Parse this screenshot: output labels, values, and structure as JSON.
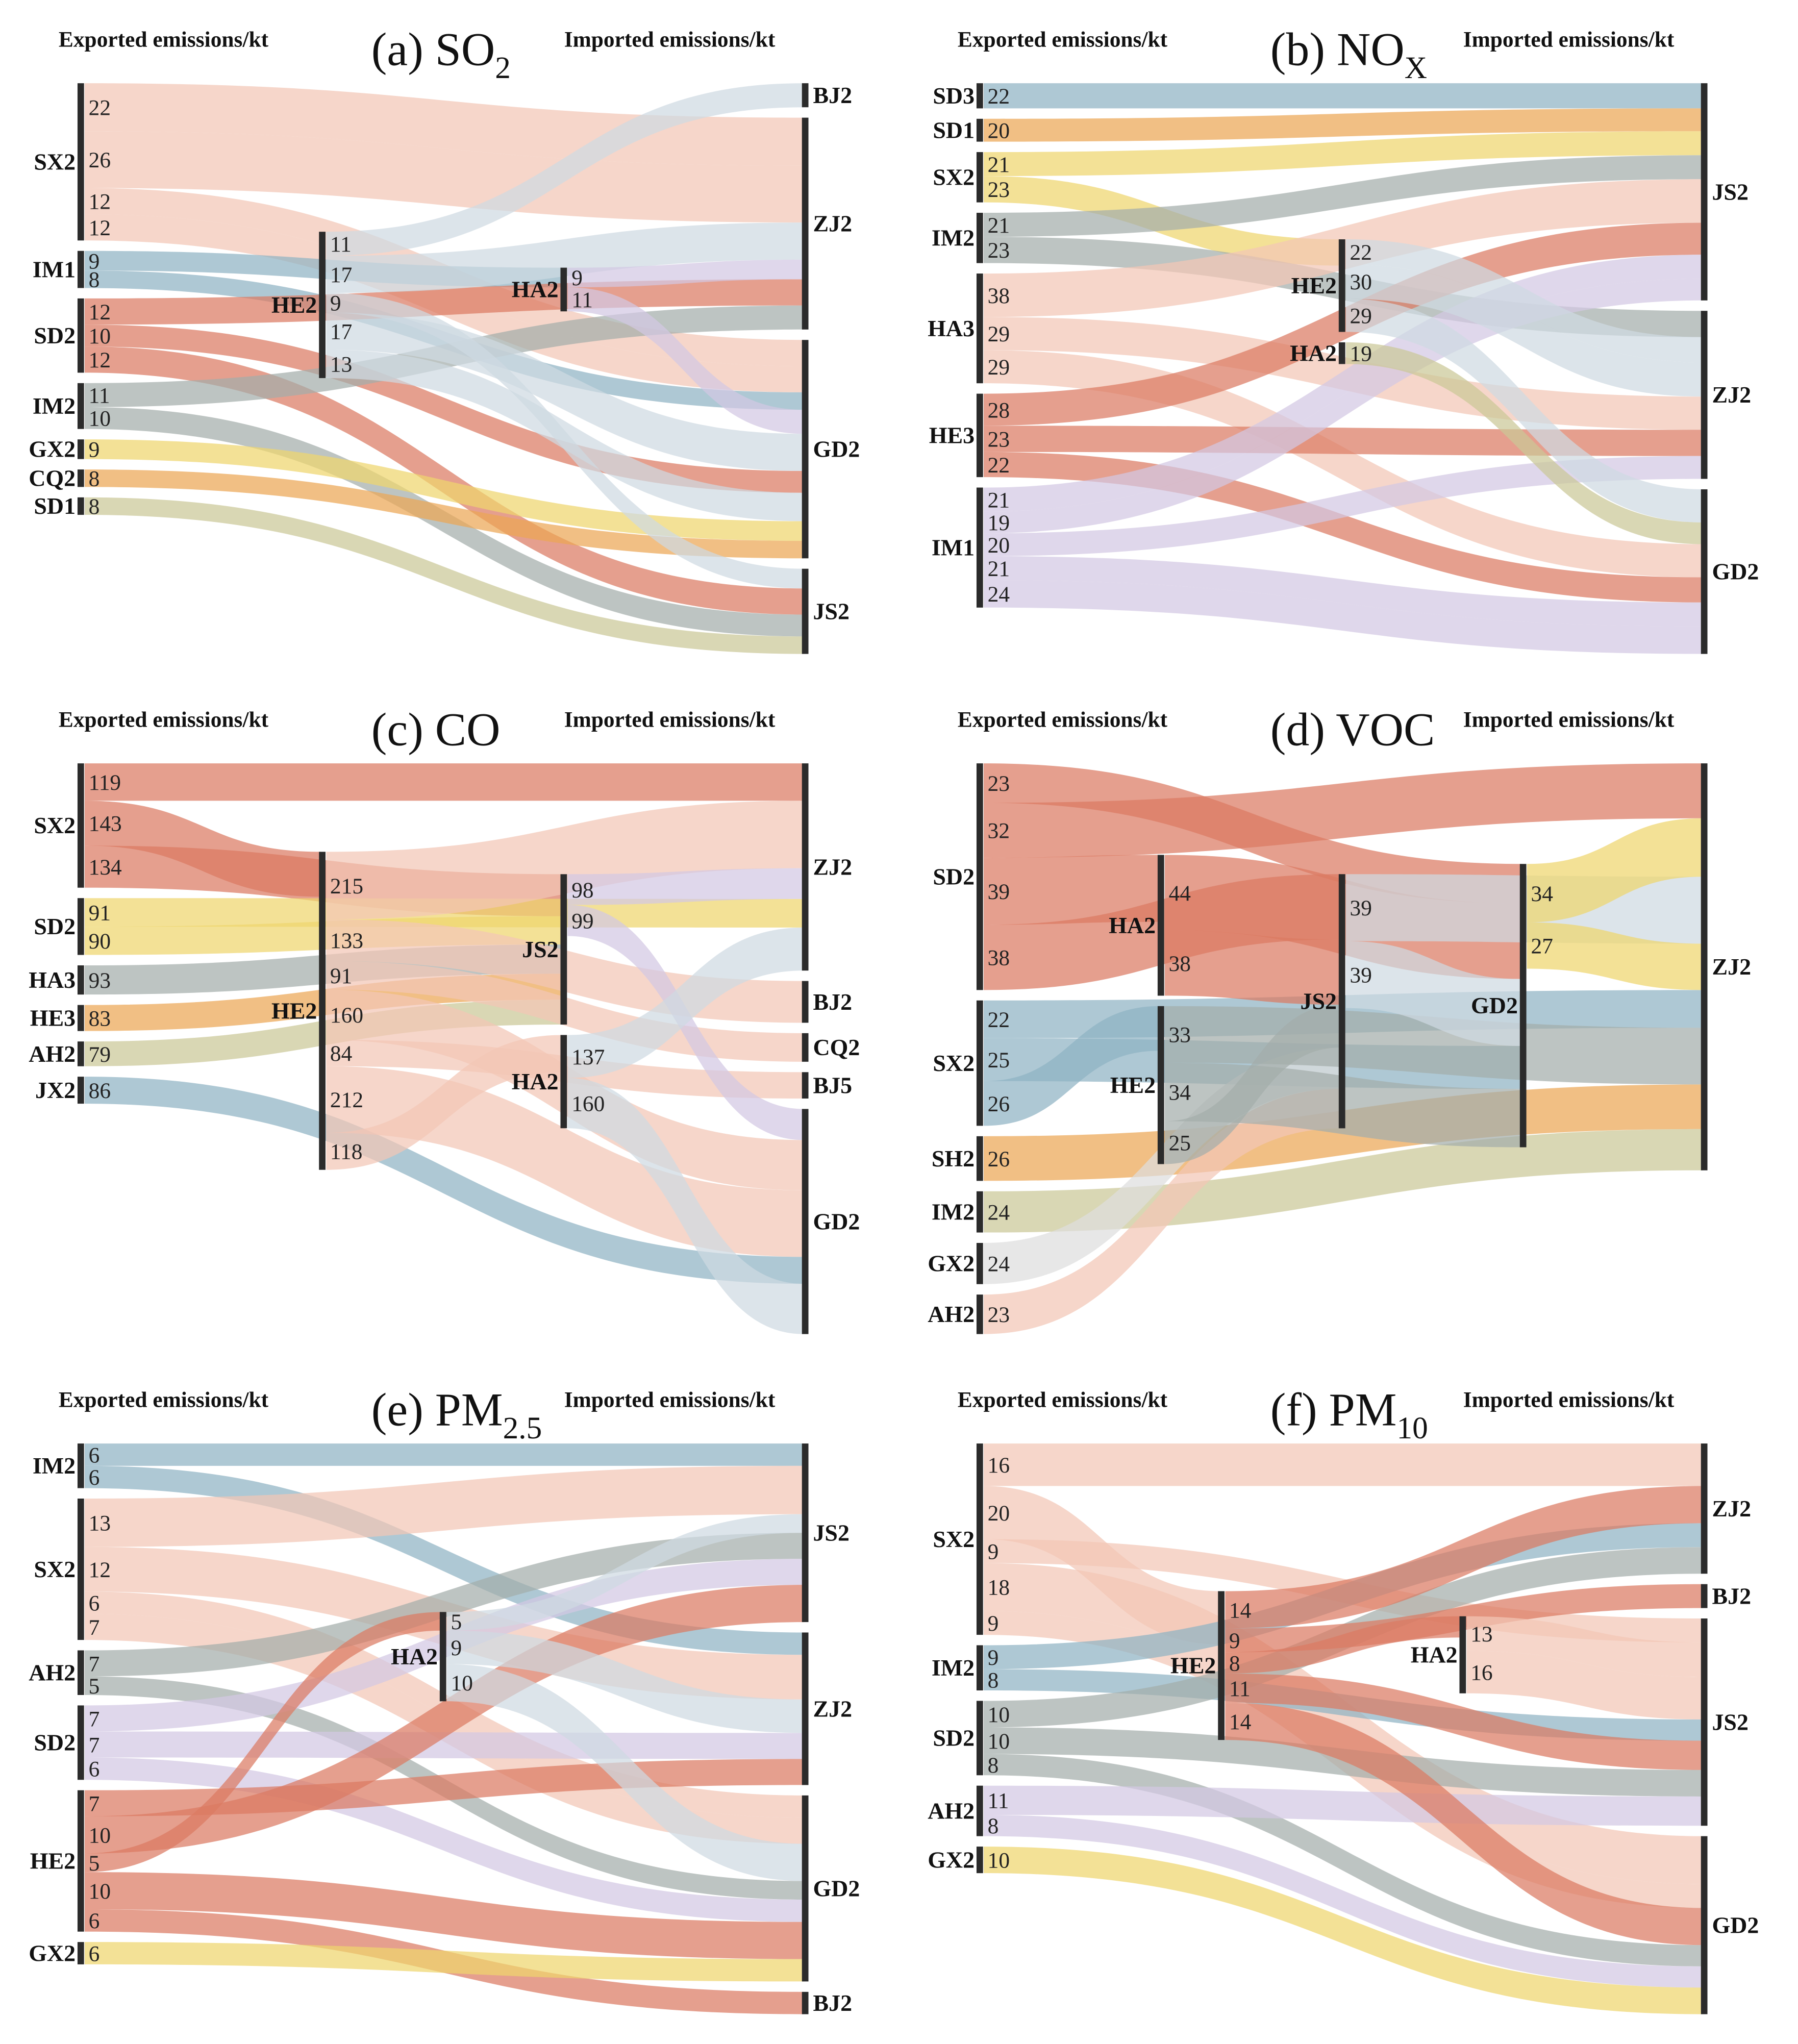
{
  "chart_data": [
    {
      "type": "sankey",
      "title": "(a) SO",
      "title_sub": "2",
      "xlabel_left": "Exported emissions/kt",
      "xlabel_right": "Imported emissions/kt",
      "nodes": [
        {
          "name": "SX2",
          "col": 0,
          "color": "#f2c6b5"
        },
        {
          "name": "IM1",
          "col": 0,
          "color": "#8fb3c4"
        },
        {
          "name": "SD2",
          "col": 0,
          "color": "#db7a62"
        },
        {
          "name": "IM2",
          "col": 0,
          "color": "#a3adab"
        },
        {
          "name": "GX2",
          "col": 0,
          "color": "#efd66e"
        },
        {
          "name": "CQ2",
          "col": 0,
          "color": "#eba654"
        },
        {
          "name": "SD1",
          "col": 0,
          "color": "#cbc797"
        },
        {
          "name": "HE2",
          "col": 1,
          "color": "#cfdae2"
        },
        {
          "name": "HA2",
          "col": 2,
          "color": "#d3c8e3"
        },
        {
          "name": "BJ2",
          "col": 3
        },
        {
          "name": "ZJ2",
          "col": 3
        },
        {
          "name": "GD2",
          "col": 3
        },
        {
          "name": "JS2",
          "col": 3
        }
      ],
      "flows": [
        [
          "SX2",
          "ZJ2",
          22
        ],
        [
          "SX2",
          "ZJ2",
          26
        ],
        [
          "SX2",
          "GD2",
          12
        ],
        [
          "SX2",
          "GD2",
          12
        ],
        [
          "IM1",
          "HA2",
          9
        ],
        [
          "IM1",
          "GD2",
          8
        ],
        [
          "SD2",
          "ZJ2",
          12
        ],
        [
          "SD2",
          "GD2",
          10
        ],
        [
          "SD2",
          "JS2",
          12
        ],
        [
          "IM2",
          "ZJ2",
          11
        ],
        [
          "IM2",
          "JS2",
          10
        ],
        [
          "GX2",
          "GD2",
          9
        ],
        [
          "CQ2",
          "GD2",
          8
        ],
        [
          "SD1",
          "JS2",
          8
        ],
        [
          "HE2",
          "BJ2",
          11
        ],
        [
          "HE2",
          "ZJ2",
          17
        ],
        [
          "HE2",
          "JS2",
          9
        ],
        [
          "HE2",
          "GD2",
          17
        ],
        [
          "HE2",
          "GD2",
          13
        ],
        [
          "HA2",
          "ZJ2",
          9
        ],
        [
          "HA2",
          "GD2",
          11
        ]
      ]
    },
    {
      "type": "sankey",
      "title": "(b) NO",
      "title_sub": "X",
      "xlabel_left": "Exported emissions/kt",
      "xlabel_right": "Imported emissions/kt",
      "nodes": [
        {
          "name": "SD3",
          "col": 0,
          "color": "#8fb3c4"
        },
        {
          "name": "SD1",
          "col": 0,
          "color": "#eba654"
        },
        {
          "name": "SX2",
          "col": 0,
          "color": "#efd66e"
        },
        {
          "name": "IM2",
          "col": 0,
          "color": "#a3adab"
        },
        {
          "name": "HA3",
          "col": 0,
          "color": "#f2c6b5"
        },
        {
          "name": "HE3",
          "col": 0,
          "color": "#db7a62"
        },
        {
          "name": "IM1",
          "col": 0,
          "color": "#d3c8e3"
        },
        {
          "name": "HE2",
          "col": 1,
          "color": "#cfdae2"
        },
        {
          "name": "HA2",
          "col": 1,
          "color": "#cbc797"
        },
        {
          "name": "JS2",
          "col": 2
        },
        {
          "name": "ZJ2",
          "col": 2
        },
        {
          "name": "GD2",
          "col": 2
        }
      ],
      "flows": [
        [
          "SD3",
          "JS2",
          22
        ],
        [
          "SD1",
          "JS2",
          20
        ],
        [
          "SX2",
          "JS2",
          21
        ],
        [
          "SX2",
          "HE2",
          23
        ],
        [
          "IM2",
          "JS2",
          21
        ],
        [
          "IM2",
          "ZJ2",
          23
        ],
        [
          "HA3",
          "JS2",
          38
        ],
        [
          "HA3",
          "ZJ2",
          29
        ],
        [
          "HA3",
          "GD2",
          29
        ],
        [
          "HE3",
          "JS2",
          28
        ],
        [
          "HE3",
          "ZJ2",
          23
        ],
        [
          "HE3",
          "GD2",
          22
        ],
        [
          "IM1",
          "JS2",
          21
        ],
        [
          "IM1",
          "JS2",
          19
        ],
        [
          "IM1",
          "ZJ2",
          20
        ],
        [
          "IM1",
          "GD2",
          21
        ],
        [
          "IM1",
          "GD2",
          24
        ],
        [
          "HE2",
          "ZJ2",
          22
        ],
        [
          "HE2",
          "ZJ2",
          30
        ],
        [
          "HE2",
          "GD2",
          29
        ],
        [
          "HA2",
          "GD2",
          19
        ]
      ]
    },
    {
      "type": "sankey",
      "title": "(c) CO",
      "title_sub": "",
      "xlabel_left": "Exported emissions/kt",
      "xlabel_right": "Imported emissions/kt",
      "nodes": [
        {
          "name": "SX2",
          "col": 0,
          "color": "#db7a62"
        },
        {
          "name": "SD2",
          "col": 0,
          "color": "#efd66e"
        },
        {
          "name": "HA3",
          "col": 0,
          "color": "#a3adab"
        },
        {
          "name": "HE3",
          "col": 0,
          "color": "#eba654"
        },
        {
          "name": "AH2",
          "col": 0,
          "color": "#cbc797"
        },
        {
          "name": "JX2",
          "col": 0,
          "color": "#8fb3c4"
        },
        {
          "name": "HE2",
          "col": 1,
          "color": "#f2c6b5"
        },
        {
          "name": "JS2",
          "col": 2,
          "color": "#d3c8e3"
        },
        {
          "name": "HA2",
          "col": 2,
          "color": "#cfdae2"
        },
        {
          "name": "ZJ2",
          "col": 3
        },
        {
          "name": "BJ2",
          "col": 3
        },
        {
          "name": "CQ2",
          "col": 3
        },
        {
          "name": "BJ5",
          "col": 3
        },
        {
          "name": "GD2",
          "col": 3
        }
      ],
      "flows": [
        [
          "SX2",
          "ZJ2",
          119
        ],
        [
          "SX2",
          "HE2",
          143
        ],
        [
          "SX2",
          "JS2",
          134
        ],
        [
          "SD2",
          "ZJ2",
          91
        ],
        [
          "SD2",
          "JS2",
          90
        ],
        [
          "HA3",
          "JS2",
          93
        ],
        [
          "HE3",
          "JS2",
          83
        ],
        [
          "AH2",
          "JS2",
          79
        ],
        [
          "JX2",
          "GD2",
          86
        ],
        [
          "HE2",
          "ZJ2",
          215
        ],
        [
          "HE2",
          "BJ2",
          133
        ],
        [
          "HE2",
          "CQ2",
          91
        ],
        [
          "HE2",
          "GD2",
          160
        ],
        [
          "HE2",
          "BJ5",
          84
        ],
        [
          "HE2",
          "GD2",
          212
        ],
        [
          "HE2",
          "HA2",
          118
        ],
        [
          "JS2",
          "ZJ2",
          98
        ],
        [
          "JS2",
          "GD2",
          99
        ],
        [
          "HA2",
          "ZJ2",
          137
        ],
        [
          "HA2",
          "GD2",
          160
        ]
      ]
    },
    {
      "type": "sankey",
      "title": "(d) VOC",
      "title_sub": "",
      "xlabel_left": "Exported emissions/kt",
      "xlabel_right": "Imported emissions/kt",
      "nodes": [
        {
          "name": "SD2",
          "col": 0,
          "color": "#db7a62"
        },
        {
          "name": "SX2",
          "col": 0,
          "color": "#8fb3c4"
        },
        {
          "name": "SH2",
          "col": 0,
          "color": "#eba654"
        },
        {
          "name": "IM2",
          "col": 0,
          "color": "#cbc797"
        },
        {
          "name": "GX2",
          "col": 0,
          "color": "#dedede"
        },
        {
          "name": "AH2",
          "col": 0,
          "color": "#f2c6b5"
        },
        {
          "name": "HA2",
          "col": 1,
          "color": "#db7a62"
        },
        {
          "name": "HE2",
          "col": 1,
          "color": "#a3adab"
        },
        {
          "name": "JS2",
          "col": 2,
          "color": "#cfdae2"
        },
        {
          "name": "GD2",
          "col": 3,
          "color": "#efd66e"
        },
        {
          "name": "ZJ2",
          "col": 4
        }
      ],
      "flows": [
        [
          "SD2",
          "GD2",
          23
        ],
        [
          "SD2",
          "ZJ2",
          32
        ],
        [
          "SD2",
          "HA2",
          39
        ],
        [
          "SD2",
          "JS2",
          38
        ],
        [
          "SX2",
          "ZJ2",
          22
        ],
        [
          "SX2",
          "GD2",
          25
        ],
        [
          "SX2",
          "HE2",
          26
        ],
        [
          "SH2",
          "ZJ2",
          26
        ],
        [
          "IM2",
          "ZJ2",
          24
        ],
        [
          "GX2",
          "JS2",
          24
        ],
        [
          "AH2",
          "JS2",
          23
        ],
        [
          "HA2",
          "GD2",
          44
        ],
        [
          "HA2",
          "JS2",
          38
        ],
        [
          "HE2",
          "ZJ2",
          33
        ],
        [
          "HE2",
          "GD2",
          34
        ],
        [
          "HE2",
          "JS2",
          25
        ],
        [
          "JS2",
          "ZJ2",
          39
        ],
        [
          "JS2",
          "GD2",
          39
        ],
        [
          "GD2",
          "ZJ2",
          34
        ],
        [
          "GD2",
          "ZJ2",
          27
        ]
      ]
    },
    {
      "type": "sankey",
      "title": "(e) PM",
      "title_sub": "2.5",
      "xlabel_left": "Exported emissions/kt",
      "xlabel_right": "Imported emissions/kt",
      "nodes": [
        {
          "name": "IM2",
          "col": 0,
          "color": "#8fb3c4"
        },
        {
          "name": "SX2",
          "col": 0,
          "color": "#f2c6b5"
        },
        {
          "name": "AH2",
          "col": 0,
          "color": "#a3adab"
        },
        {
          "name": "SD2",
          "col": 0,
          "color": "#d3c8e3"
        },
        {
          "name": "HE2",
          "col": 0,
          "color": "#db7a62"
        },
        {
          "name": "GX2",
          "col": 0,
          "color": "#efd66e"
        },
        {
          "name": "HA2",
          "col": 1,
          "color": "#cfdae2"
        },
        {
          "name": "JS2",
          "col": 2
        },
        {
          "name": "ZJ2",
          "col": 2
        },
        {
          "name": "GD2",
          "col": 2
        },
        {
          "name": "BJ2",
          "col": 2
        }
      ],
      "flows": [
        [
          "IM2",
          "JS2",
          6
        ],
        [
          "IM2",
          "ZJ2",
          6
        ],
        [
          "SX2",
          "JS2",
          13
        ],
        [
          "SX2",
          "ZJ2",
          12
        ],
        [
          "SX2",
          "GD2",
          6
        ],
        [
          "SX2",
          "GD2",
          7
        ],
        [
          "AH2",
          "JS2",
          7
        ],
        [
          "AH2",
          "GD2",
          5
        ],
        [
          "SD2",
          "JS2",
          7
        ],
        [
          "SD2",
          "ZJ2",
          7
        ],
        [
          "SD2",
          "GD2",
          6
        ],
        [
          "HE2",
          "ZJ2",
          7
        ],
        [
          "HE2",
          "JS2",
          10
        ],
        [
          "HE2",
          "HA2",
          5
        ],
        [
          "HE2",
          "GD2",
          10
        ],
        [
          "HE2",
          "BJ2",
          6
        ],
        [
          "GX2",
          "GD2",
          6
        ],
        [
          "HA2",
          "JS2",
          5
        ],
        [
          "HA2",
          "ZJ2",
          9
        ],
        [
          "HA2",
          "GD2",
          10
        ]
      ]
    },
    {
      "type": "sankey",
      "title": "(f) PM",
      "title_sub": "10",
      "xlabel_left": "Exported emissions/kt",
      "xlabel_right": "Imported emissions/kt",
      "nodes": [
        {
          "name": "SX2",
          "col": 0,
          "color": "#f2c6b5"
        },
        {
          "name": "IM2",
          "col": 0,
          "color": "#8fb3c4"
        },
        {
          "name": "SD2",
          "col": 0,
          "color": "#a3adab"
        },
        {
          "name": "AH2",
          "col": 0,
          "color": "#d3c8e3"
        },
        {
          "name": "GX2",
          "col": 0,
          "color": "#efd66e"
        },
        {
          "name": "HE2",
          "col": 1,
          "color": "#db7a62"
        },
        {
          "name": "HA2",
          "col": 2,
          "color": "#f2c6b5"
        },
        {
          "name": "ZJ2",
          "col": 3
        },
        {
          "name": "BJ2",
          "col": 3
        },
        {
          "name": "JS2",
          "col": 3
        },
        {
          "name": "GD2",
          "col": 3
        }
      ],
      "flows": [
        [
          "SX2",
          "ZJ2",
          16
        ],
        [
          "SX2",
          "HE2",
          20
        ],
        [
          "SX2",
          "JS2",
          9
        ],
        [
          "SX2",
          "GD2",
          18
        ],
        [
          "SX2",
          "GD2",
          9
        ],
        [
          "IM2",
          "ZJ2",
          9
        ],
        [
          "IM2",
          "JS2",
          8
        ],
        [
          "SD2",
          "ZJ2",
          10
        ],
        [
          "SD2",
          "JS2",
          10
        ],
        [
          "SD2",
          "GD2",
          8
        ],
        [
          "AH2",
          "JS2",
          11
        ],
        [
          "AH2",
          "GD2",
          8
        ],
        [
          "GX2",
          "GD2",
          10
        ],
        [
          "HE2",
          "ZJ2",
          14
        ],
        [
          "HE2",
          "BJ2",
          9
        ],
        [
          "HE2",
          "HA2",
          8
        ],
        [
          "HE2",
          "JS2",
          11
        ],
        [
          "HE2",
          "GD2",
          14
        ],
        [
          "HA2",
          "JS2",
          13
        ],
        [
          "HA2",
          "JS2",
          16
        ]
      ]
    }
  ]
}
